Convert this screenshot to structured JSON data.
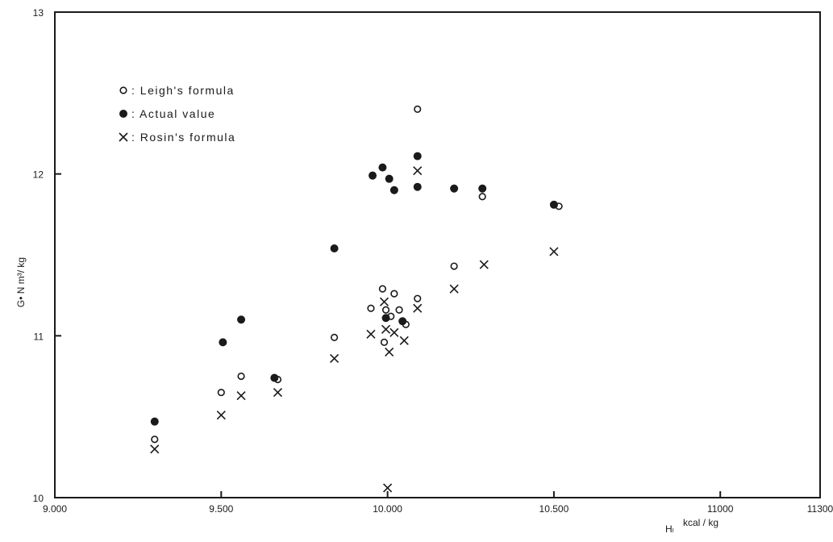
{
  "chart_data": {
    "type": "scatter",
    "title": "",
    "xlabel": "Hₗ",
    "xlabel_units": "kcal / kg",
    "ylabel": "G• N m³/ kg",
    "xlim": [
      9000,
      11300
    ],
    "ylim": [
      10,
      13
    ],
    "x_ticks": [
      {
        "value": 9000,
        "label": "9.000"
      },
      {
        "value": 9500,
        "label": "9.500"
      },
      {
        "value": 10000,
        "label": "10.000"
      },
      {
        "value": 10500,
        "label": "10.500"
      },
      {
        "value": 11000,
        "label": "11000"
      },
      {
        "value": 11300,
        "label": "11300"
      }
    ],
    "y_ticks": [
      {
        "value": 10,
        "label": "10"
      },
      {
        "value": 11,
        "label": "11"
      },
      {
        "value": 12,
        "label": "12"
      },
      {
        "value": 13,
        "label": "13"
      }
    ],
    "grid": false,
    "legend_position": "top-left",
    "series": [
      {
        "name": "Leigh's formula",
        "legend_label": "o: Leigh's  formula",
        "marker": "open-circle",
        "x": [
          9300,
          9500,
          9560,
          9670,
          9840,
          9950,
          9985,
          9990,
          9995,
          10010,
          10020,
          10035,
          10055,
          10090,
          10090,
          10200,
          10285,
          10515
        ],
        "y": [
          10.36,
          10.65,
          10.75,
          10.73,
          10.99,
          11.17,
          11.29,
          10.96,
          11.16,
          11.12,
          11.26,
          11.16,
          11.07,
          11.23,
          12.4,
          11.43,
          11.86,
          11.8
        ]
      },
      {
        "name": "Actual value",
        "legend_label": "●: Actual    value",
        "marker": "filled-circle",
        "x": [
          9300,
          9505,
          9560,
          9660,
          9840,
          9955,
          9985,
          10005,
          10020,
          9995,
          10045,
          10090,
          10090,
          10200,
          10285,
          10500
        ],
        "y": [
          10.47,
          10.96,
          11.1,
          10.74,
          11.54,
          11.99,
          12.04,
          11.97,
          11.9,
          11.11,
          11.09,
          12.11,
          11.92,
          11.91,
          11.91,
          11.81
        ]
      },
      {
        "name": "Rosin's formula",
        "legend_label": "×: Rosin's   formula",
        "marker": "cross",
        "x": [
          9300,
          9500,
          9560,
          9670,
          9840,
          9950,
          9990,
          9995,
          10005,
          10020,
          10050,
          10090,
          10090,
          10200,
          10290,
          10500,
          10000
        ],
        "y": [
          10.3,
          10.51,
          10.63,
          10.65,
          10.86,
          11.01,
          11.21,
          11.04,
          10.9,
          11.02,
          10.97,
          12.02,
          11.17,
          11.29,
          11.44,
          11.52,
          10.06
        ]
      }
    ],
    "extra_points_note": ""
  }
}
